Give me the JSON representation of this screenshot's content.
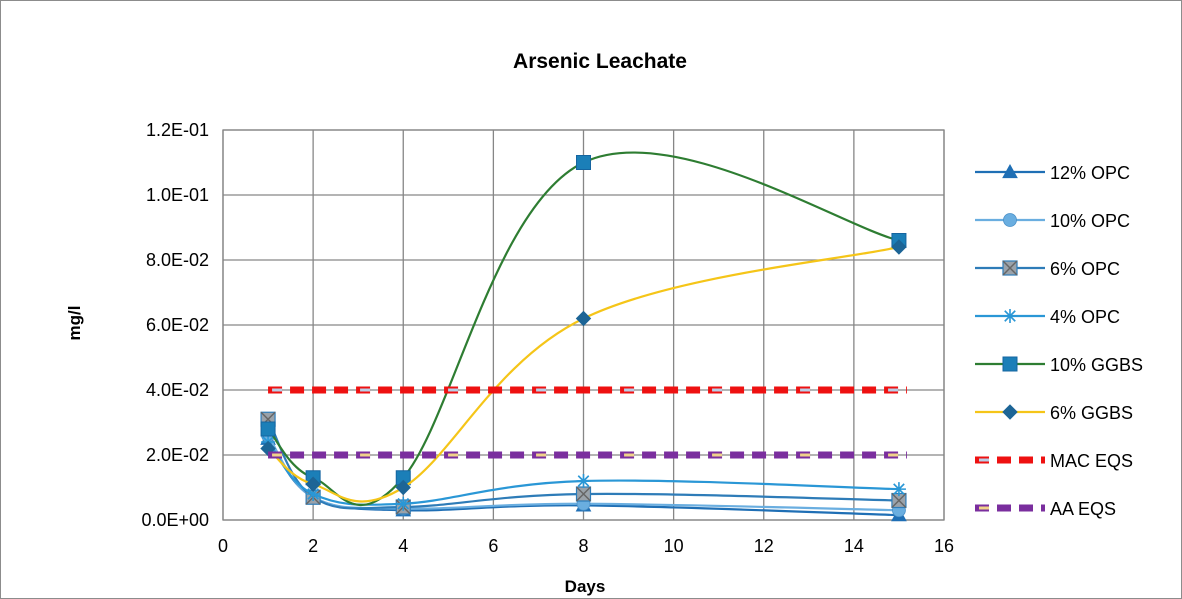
{
  "chart_data": {
    "type": "line",
    "title": "Arsenic Leachate",
    "xlabel": "Days",
    "ylabel": "mg/l",
    "xlim": [
      0,
      16
    ],
    "ylim": [
      0,
      0.12
    ],
    "x_ticks": [
      "0",
      "2",
      "4",
      "6",
      "8",
      "10",
      "12",
      "14",
      "16"
    ],
    "y_ticks": [
      "0.0E+00",
      "2.0E-02",
      "4.0E-02",
      "6.0E-02",
      "8.0E-02",
      "1.0E-01",
      "1.2E-01"
    ],
    "grid": true,
    "legend_position": "right",
    "x": [
      1,
      2,
      4,
      8,
      15
    ],
    "series": [
      {
        "name": "12% OPC",
        "values": [
          0.025,
          0.007,
          0.003,
          0.0045,
          0.0015
        ],
        "color": "#1f6fb5",
        "marker": "triangle"
      },
      {
        "name": "10% OPC",
        "values": [
          0.026,
          0.007,
          0.0035,
          0.005,
          0.003
        ],
        "color": "#6aaee0",
        "marker": "circle"
      },
      {
        "name": "6% OPC",
        "values": [
          0.031,
          0.007,
          0.004,
          0.008,
          0.006
        ],
        "color": "#2e7cb8",
        "marker": "square-x"
      },
      {
        "name": "4% OPC",
        "values": [
          0.024,
          0.008,
          0.005,
          0.012,
          0.0095
        ],
        "color": "#2a97d6",
        "marker": "star"
      },
      {
        "name": "10% GGBS",
        "values": [
          0.028,
          0.013,
          0.013,
          0.11,
          0.086
        ],
        "color": "#2e7d32",
        "marker": "square"
      },
      {
        "name": "6% GGBS",
        "values": [
          0.022,
          0.011,
          0.01,
          0.062,
          0.084
        ],
        "color": "#f5c518",
        "marker": "diamond"
      },
      {
        "name": "MAC EQS",
        "values": [
          0.04,
          0.04,
          0.04,
          0.04,
          0.04
        ],
        "color": "#ee1111",
        "marker": "none"
      },
      {
        "name": "AA EQS",
        "values": [
          0.02,
          0.02,
          0.02,
          0.02,
          0.02
        ],
        "color": "#7a2e9e",
        "marker": "none"
      }
    ]
  }
}
